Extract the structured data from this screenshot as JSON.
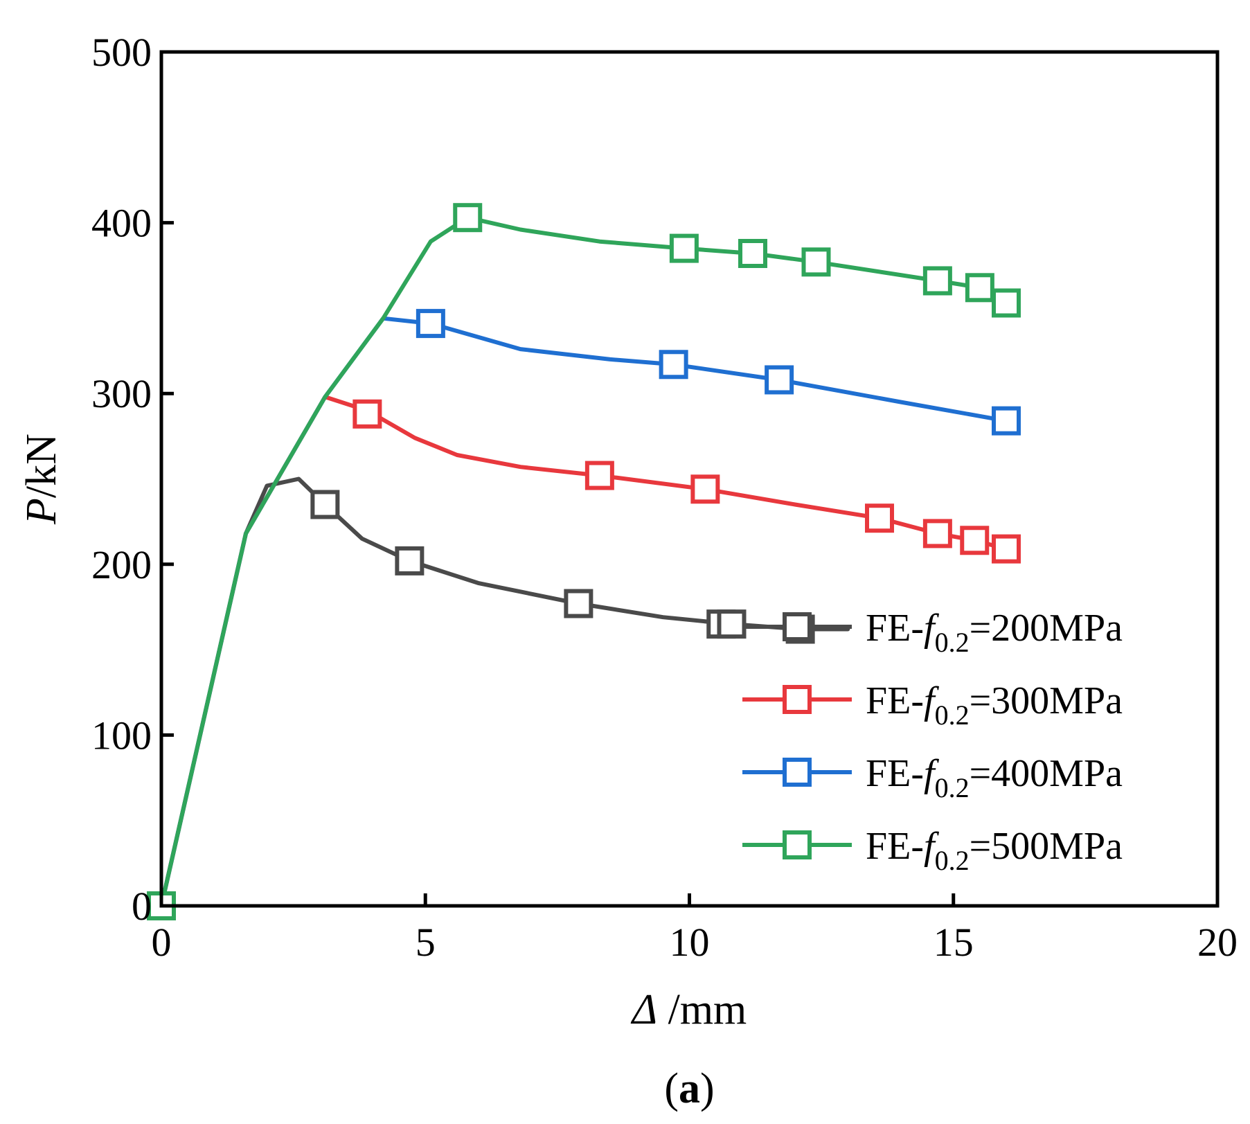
{
  "chart_data": {
    "type": "line",
    "title": "",
    "panel_label": {
      "open": "(",
      "letter": "a",
      "close": ")"
    },
    "xlabel": {
      "symbol": "Δ",
      "unit": " /mm"
    },
    "ylabel": {
      "symbol": "P",
      "unit": "/kN"
    },
    "xlim": [
      0,
      20
    ],
    "ylim": [
      0,
      500
    ],
    "x_ticks": [
      0,
      5,
      10,
      15,
      20
    ],
    "y_ticks": [
      0,
      100,
      200,
      300,
      400,
      500
    ],
    "x_tick_labels": [
      "0",
      "5",
      "10",
      "15",
      "20"
    ],
    "y_tick_labels": [
      "0",
      "100",
      "200",
      "300",
      "400",
      "500"
    ],
    "grid": false,
    "legend_position": "bottom-right",
    "marker": "open-square",
    "series": [
      {
        "name": "FE-f0.2=200MPa",
        "label_prefix": "FE-",
        "label_symbol": "f",
        "label_subscript": "0.2",
        "label_suffix": "=200MPa",
        "color": "#4a4a4a",
        "curve": [
          [
            0,
            0
          ],
          [
            1.6,
            218
          ],
          [
            2.0,
            246
          ],
          [
            2.6,
            250
          ],
          [
            3.1,
            235
          ],
          [
            3.8,
            215
          ],
          [
            4.7,
            202
          ],
          [
            6.0,
            189
          ],
          [
            7.9,
            177
          ],
          [
            9.5,
            169
          ],
          [
            10.8,
            165
          ],
          [
            12.1,
            162
          ],
          [
            13.0,
            162
          ]
        ],
        "markers": [
          [
            0,
            0
          ],
          [
            3.1,
            235
          ],
          [
            4.7,
            202
          ],
          [
            7.9,
            177
          ],
          [
            10.6,
            165
          ],
          [
            10.8,
            165
          ],
          [
            12.1,
            162
          ]
        ]
      },
      {
        "name": "FE-f0.2=300MPa",
        "label_prefix": "FE-",
        "label_symbol": "f",
        "label_subscript": "0.2",
        "label_suffix": "=300MPa",
        "color": "#e8383d",
        "curve": [
          [
            0,
            0
          ],
          [
            1.6,
            218
          ],
          [
            3.1,
            298
          ],
          [
            3.9,
            290
          ],
          [
            4.8,
            274
          ],
          [
            5.6,
            264
          ],
          [
            6.8,
            257
          ],
          [
            8.3,
            252
          ],
          [
            10.3,
            244
          ],
          [
            12.0,
            235
          ],
          [
            13.6,
            227
          ],
          [
            14.7,
            218
          ],
          [
            15.4,
            214
          ],
          [
            16.0,
            209
          ]
        ],
        "markers": [
          [
            0,
            0
          ],
          [
            3.9,
            288
          ],
          [
            8.3,
            252
          ],
          [
            10.3,
            244
          ],
          [
            13.6,
            227
          ],
          [
            14.7,
            218
          ],
          [
            15.4,
            214
          ],
          [
            16.0,
            209
          ]
        ]
      },
      {
        "name": "FE-f0.2=400MPa",
        "label_prefix": "FE-",
        "label_symbol": "f",
        "label_subscript": "0.2",
        "label_suffix": "=400MPa",
        "color": "#1f6fd1",
        "curve": [
          [
            0,
            0
          ],
          [
            1.6,
            218
          ],
          [
            3.1,
            298
          ],
          [
            4.2,
            344
          ],
          [
            5.1,
            341
          ],
          [
            6.8,
            326
          ],
          [
            8.5,
            320
          ],
          [
            9.7,
            317
          ],
          [
            11.7,
            308
          ],
          [
            14.0,
            295
          ],
          [
            16.0,
            284
          ]
        ],
        "markers": [
          [
            0,
            0
          ],
          [
            5.1,
            341
          ],
          [
            9.7,
            317
          ],
          [
            11.7,
            308
          ],
          [
            16.0,
            284
          ]
        ]
      },
      {
        "name": "FE-f0.2=500MPa",
        "label_prefix": "FE-",
        "label_symbol": "f",
        "label_subscript": "0.2",
        "label_suffix": "=500MPa",
        "color": "#2fa55a",
        "curve": [
          [
            0,
            0
          ],
          [
            1.6,
            218
          ],
          [
            3.1,
            298
          ],
          [
            4.2,
            344
          ],
          [
            5.1,
            389
          ],
          [
            5.8,
            403
          ],
          [
            6.8,
            396
          ],
          [
            8.3,
            389
          ],
          [
            9.9,
            385
          ],
          [
            11.2,
            382
          ],
          [
            12.4,
            377
          ],
          [
            14.7,
            366
          ],
          [
            15.5,
            362
          ],
          [
            16.0,
            353
          ]
        ],
        "markers": [
          [
            0,
            0
          ],
          [
            5.8,
            403
          ],
          [
            9.9,
            385
          ],
          [
            11.2,
            382
          ],
          [
            12.4,
            377
          ],
          [
            14.7,
            366
          ],
          [
            15.5,
            362
          ],
          [
            16.0,
            353
          ]
        ]
      }
    ]
  }
}
